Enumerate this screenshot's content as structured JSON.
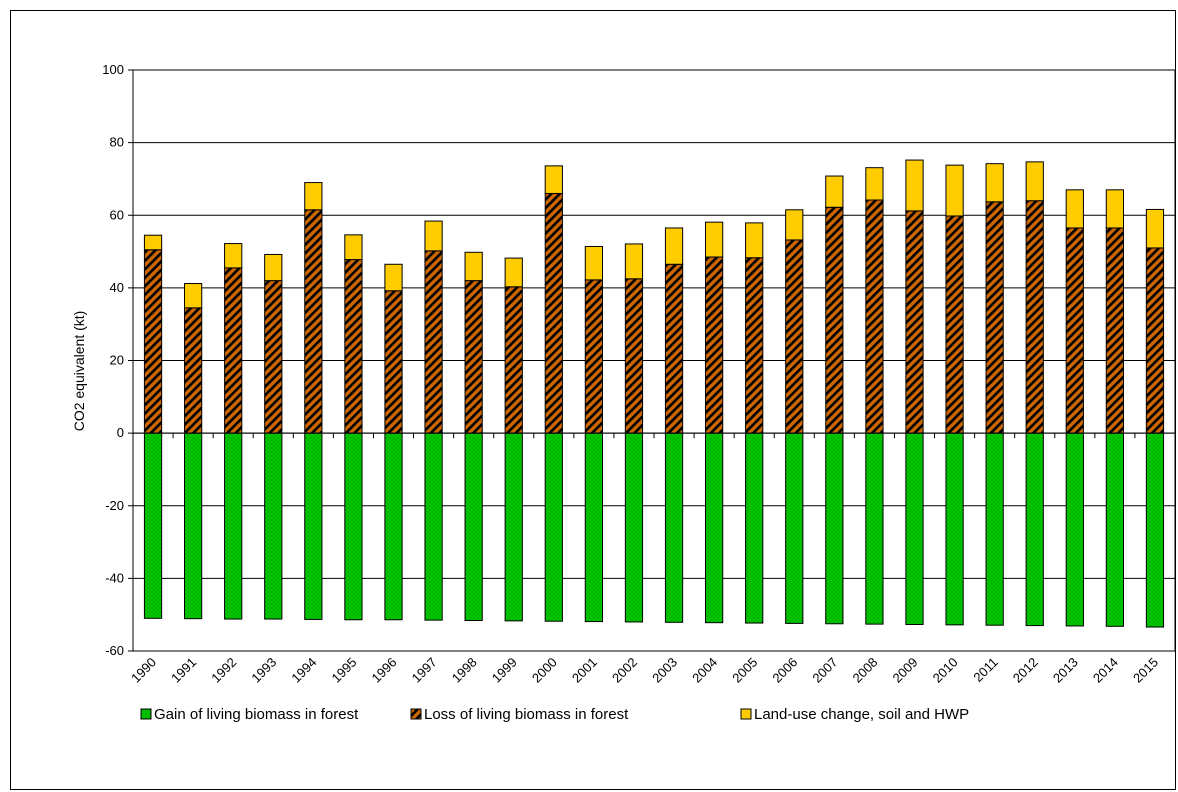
{
  "chart_data": {
    "type": "bar",
    "stacked": true,
    "title": "",
    "xlabel": "",
    "ylabel": "CO2 equivalent (kt)",
    "ylim": [
      -60,
      100
    ],
    "yticks": [
      -60,
      -40,
      -20,
      0,
      20,
      40,
      60,
      80,
      100
    ],
    "grid": "horizontal",
    "legend_position": "bottom",
    "categories": [
      "1990",
      "1991",
      "1992",
      "1993",
      "1994",
      "1995",
      "1996",
      "1997",
      "1998",
      "1999",
      "2000",
      "2001",
      "2002",
      "2003",
      "2004",
      "2005",
      "2006",
      "2007",
      "2008",
      "2009",
      "2010",
      "2011",
      "2012",
      "2013",
      "2014",
      "2015"
    ],
    "series": [
      {
        "name": "Gain of living biomass in forest",
        "color": "#00cc00",
        "pattern": "dotted",
        "values": [
          -51.0,
          -51.1,
          -51.2,
          -51.2,
          -51.3,
          -51.4,
          -51.4,
          -51.5,
          -51.6,
          -51.7,
          -51.8,
          -51.9,
          -52.0,
          -52.1,
          -52.2,
          -52.3,
          -52.4,
          -52.5,
          -52.6,
          -52.7,
          -52.8,
          -52.9,
          -53.0,
          -53.1,
          -53.2,
          -53.4
        ]
      },
      {
        "name": "Loss of living biomass in forest",
        "color": "#cc6600",
        "pattern": "diagonal-stripes",
        "values": [
          50.5,
          34.5,
          45.5,
          42.0,
          61.5,
          47.8,
          39.2,
          50.2,
          42.0,
          40.3,
          66.0,
          42.2,
          42.5,
          46.5,
          48.5,
          48.3,
          53.2,
          62.2,
          64.2,
          61.2,
          59.8,
          63.7,
          64.0,
          56.5,
          56.5,
          51.0
        ]
      },
      {
        "name": "Land-use change, soil and HWP",
        "color": "#ffcc00",
        "pattern": "solid",
        "values": [
          4.0,
          6.7,
          6.7,
          7.2,
          7.5,
          6.8,
          7.3,
          8.2,
          7.8,
          7.9,
          7.6,
          9.2,
          9.6,
          10.0,
          9.6,
          9.6,
          8.3,
          8.6,
          8.9,
          14.0,
          14.0,
          10.5,
          10.7,
          10.5,
          10.5,
          10.6
        ]
      }
    ]
  }
}
